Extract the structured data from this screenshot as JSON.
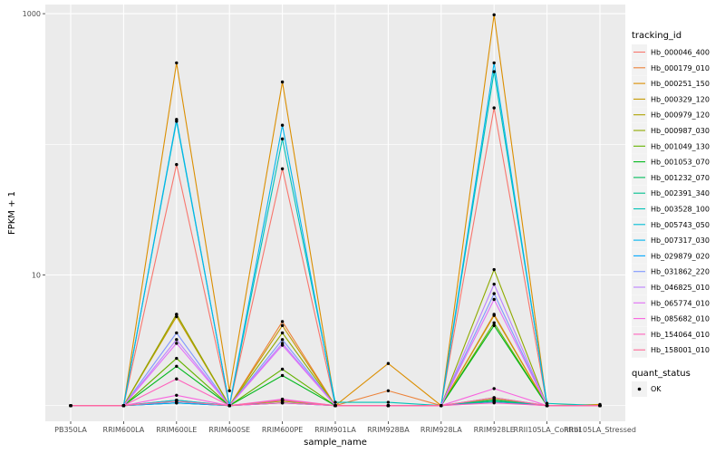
{
  "chart_data": {
    "type": "line",
    "xlabel": "sample_name",
    "ylabel": "FPKM + 1",
    "y_scale": "log10",
    "ylim": [
      1,
      1000
    ],
    "y_ticks": [
      10,
      1000
    ],
    "y_tick_labels": [
      "10",
      "1000"
    ],
    "grid": true,
    "legend_position": "right",
    "categories": [
      "PB350LA",
      "RRIM600LA",
      "RRIM600LE",
      "RRIM600SE",
      "RRIM600PE",
      "RRIM901LA",
      "RRIM928BA",
      "RRIM928LA",
      "RRIM928LE",
      "RRII105LA_Control",
      "RRII105LA_Stressed"
    ],
    "series": [
      {
        "name": "Hb_000046_400",
        "color": "#F8766D",
        "values": [
          1,
          1,
          70,
          1,
          65,
          1,
          1,
          1,
          190,
          1,
          1
        ]
      },
      {
        "name": "Hb_000179_010",
        "color": "#EC8239",
        "values": [
          1,
          1,
          5,
          1,
          4.4,
          1,
          1.3,
          1,
          5,
          1,
          1
        ]
      },
      {
        "name": "Hb_000251_150",
        "color": "#DB8E00",
        "values": [
          1,
          1,
          420,
          1.3,
          300,
          1,
          2.1,
          1,
          980,
          1,
          1.02
        ]
      },
      {
        "name": "Hb_000329_120",
        "color": "#C69900",
        "values": [
          1,
          1,
          4.8,
          1,
          4.1,
          1,
          1,
          1,
          4.9,
          1,
          1
        ]
      },
      {
        "name": "Hb_000979_120",
        "color": "#AEA200",
        "values": [
          1,
          1,
          1.1,
          1,
          1.08,
          1,
          1,
          1,
          1.12,
          1,
          1
        ]
      },
      {
        "name": "Hb_000987_030",
        "color": "#8FAA00",
        "values": [
          1,
          1,
          5,
          1,
          3.6,
          1,
          1,
          1,
          11,
          1,
          1
        ]
      },
      {
        "name": "Hb_001049_130",
        "color": "#64B200",
        "values": [
          1,
          1,
          2.3,
          1,
          1.9,
          1,
          1,
          1,
          4.3,
          1,
          1
        ]
      },
      {
        "name": "Hb_001053_070",
        "color": "#00B81B",
        "values": [
          1,
          1,
          2.0,
          1,
          1.7,
          1,
          1,
          1,
          4.1,
          1,
          1
        ]
      },
      {
        "name": "Hb_001232_070",
        "color": "#00BD5C",
        "values": [
          1,
          1,
          1.05,
          1,
          1.05,
          1,
          1,
          1,
          1.08,
          1,
          1
        ]
      },
      {
        "name": "Hb_002391_340",
        "color": "#00C08E",
        "values": [
          1,
          1,
          1.05,
          1,
          1.1,
          1,
          1,
          1,
          1.1,
          1,
          1
        ]
      },
      {
        "name": "Hb_003528_100",
        "color": "#00C1B7",
        "values": [
          1,
          1,
          150,
          1,
          110,
          1.06,
          1.06,
          1,
          360,
          1.04,
          1
        ]
      },
      {
        "name": "Hb_005743_050",
        "color": "#00BDD4",
        "values": [
          1,
          1,
          1.1,
          1,
          1.1,
          1,
          1,
          1,
          1.15,
          1,
          1
        ]
      },
      {
        "name": "Hb_007317_030",
        "color": "#00B5EE",
        "values": [
          1,
          1,
          155,
          1,
          140,
          1,
          1,
          1,
          420,
          1,
          1
        ]
      },
      {
        "name": "Hb_029879_020",
        "color": "#00A7FF",
        "values": [
          1,
          1,
          1.05,
          1,
          1.05,
          1,
          1,
          1,
          1.06,
          1,
          1
        ]
      },
      {
        "name": "Hb_031862_220",
        "color": "#7F96FF",
        "values": [
          1,
          1,
          3.6,
          1,
          3.2,
          1,
          1,
          1,
          7.2,
          1,
          1
        ]
      },
      {
        "name": "Hb_046825_010",
        "color": "#BC81FF",
        "values": [
          1,
          1,
          3.2,
          1,
          3.0,
          1,
          1,
          1,
          8.5,
          1,
          1
        ]
      },
      {
        "name": "Hb_065774_010",
        "color": "#E26EF7",
        "values": [
          1,
          1,
          3.0,
          1,
          2.9,
          1,
          1,
          1,
          6.5,
          1,
          1
        ]
      },
      {
        "name": "Hb_085682_010",
        "color": "#F863DF",
        "values": [
          1,
          1,
          1.2,
          1,
          1.12,
          1,
          1,
          1,
          1.35,
          1,
          1
        ]
      },
      {
        "name": "Hb_154064_010",
        "color": "#FF62BC",
        "values": [
          1,
          1,
          1.6,
          1,
          1.05,
          1,
          1,
          1,
          1.05,
          1,
          1
        ]
      },
      {
        "name": "Hb_158001_010",
        "color": "#FF6A98",
        "values": [
          1,
          1,
          1.08,
          1,
          1.1,
          1,
          1,
          1,
          1.15,
          1,
          1
        ]
      }
    ],
    "legend": {
      "title": "tracking_id",
      "shape_title": "quant_status",
      "shape_label": "OK"
    }
  }
}
